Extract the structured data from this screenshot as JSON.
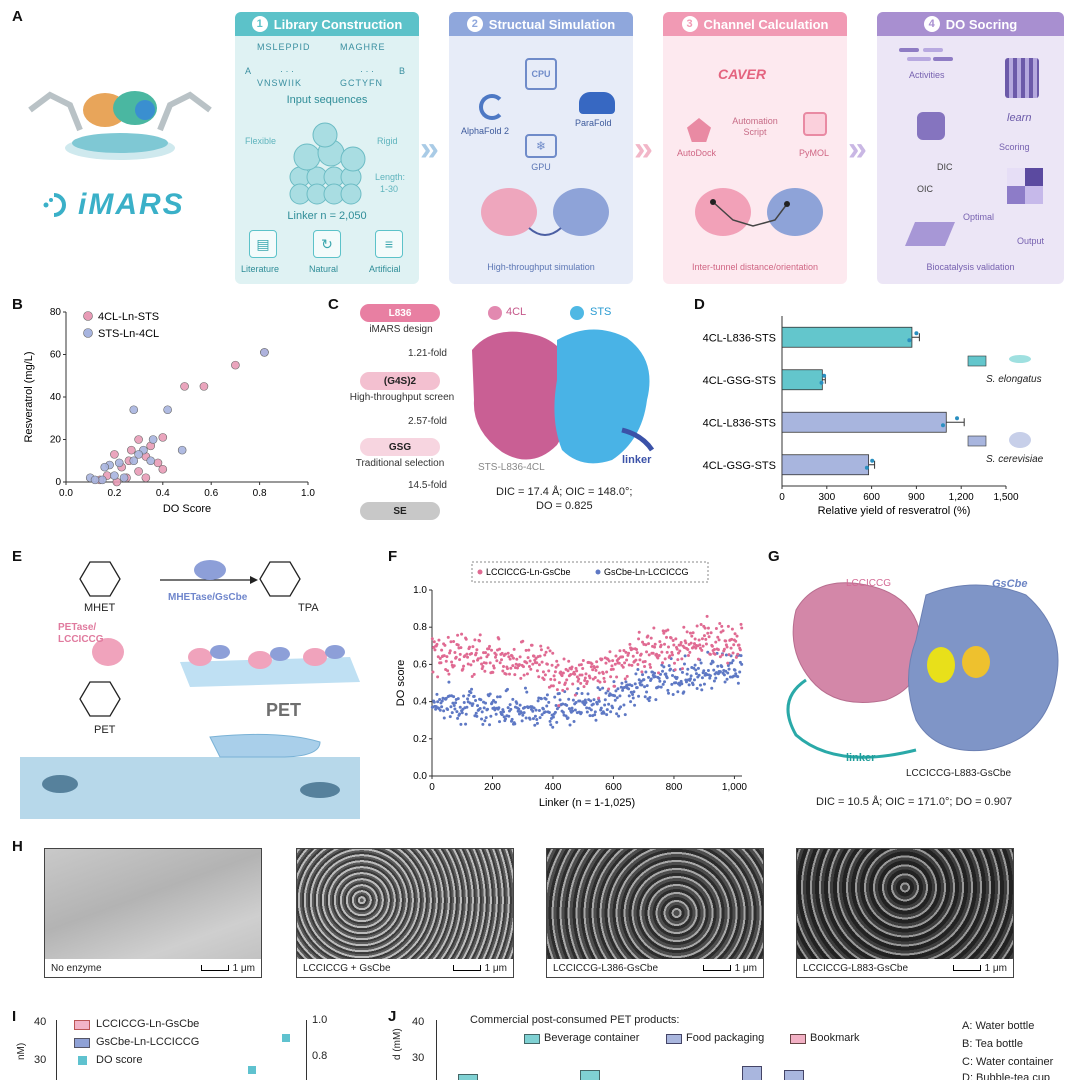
{
  "panel_letters": {
    "a": "A",
    "b": "B",
    "c": "C",
    "d": "D",
    "e": "E",
    "f": "F",
    "g": "G",
    "h": "H",
    "i": "I",
    "j": "J"
  },
  "panelA": {
    "logo_text": "iMARS",
    "steps": [
      {
        "num": "1",
        "title": "Library Construction",
        "color": "#5cc2c9",
        "bg": "#dff2f3"
      },
      {
        "num": "2",
        "title": "Structual Simulation",
        "color": "#8fa7dc",
        "bg": "#e7ecf8"
      },
      {
        "num": "3",
        "title": "Channel Calculation",
        "color": "#f19ab4",
        "bg": "#fde9ef"
      },
      {
        "num": "4",
        "title": "DO Socring",
        "color": "#a88fd0",
        "bg": "#ece6f6"
      }
    ],
    "lib": {
      "seqA1": "MSLEPPID",
      "seqA2": "VNSWIIK",
      "seqB1": "MAGHRE",
      "seqB2": "GCTYFN",
      "labelA": "A",
      "labelB": "B",
      "dots": "· · ·",
      "input_sequences": "Input sequences",
      "flexible": "Flexible",
      "rigid": "Rigid",
      "length": "Length:",
      "length_range": "1-30",
      "linker": "Linker  n = 2,050",
      "sources": [
        "Literature",
        "Natural",
        "Artificial"
      ]
    },
    "sim": {
      "cpu": "CPU",
      "gpu": "GPU",
      "alphafold": "AlphaFold 2",
      "parafold": "ParaFold",
      "caption": "High-throughput simulation"
    },
    "chan": {
      "caver": "CAVER",
      "automation": "Automation",
      "script": "Script",
      "autodock": "AutoDock",
      "pymol": "PyMOL",
      "caption": "Inter-tunnel distance/orientation"
    },
    "do": {
      "activities": "Activities",
      "learn": "learn",
      "scoring": "Scoring",
      "dic": "DIC",
      "oic": "OIC",
      "optimal": "Optimal",
      "output": "Output",
      "caption": "Biocatalysis validation"
    }
  },
  "panelB": {
    "legend": [
      "4CL-Ln-STS",
      "STS-Ln-4CL"
    ],
    "xlabel": "DO Score",
    "ylabel": "Resveratrol (mg/L)"
  },
  "panelC": {
    "steps": [
      "L836",
      "(G4S)2",
      "GSG",
      "SE"
    ],
    "step_labels": [
      "iMARS design",
      "High-throughput screen",
      "Traditional selection"
    ],
    "folds": [
      "1.21-fold",
      "2.57-fold",
      "14.5-fold"
    ],
    "legend": [
      "4CL",
      "STS"
    ],
    "structure_label": "STS-L836-4CL",
    "linker": "linker",
    "metrics1": "DIC = 17.4 Å; OIC = 148.0°;",
    "metrics2": "DO = 0.825"
  },
  "panelD": {
    "xlabel": "Relative yield of resveratrol (%)",
    "organisms": [
      "S. elongatus",
      "S. cerevisiae"
    ]
  },
  "panelE": {
    "mhet": "MHET",
    "tpa": "TPA",
    "enzyme": "MHETase/GsCbe",
    "petase": "PETase/",
    "lcc": "LCCICCG",
    "pet_label": "PET",
    "pet_big": "PET"
  },
  "panelF": {
    "legend": [
      "LCCICCG-Ln-GsCbe",
      "GsCbe-Ln-LCCICCG"
    ],
    "xlabel": "Linker (n = 1-1,025)",
    "ylabel": "DO score"
  },
  "panelG": {
    "lcc": "LCCICCG",
    "gscbe": "GsCbe",
    "linker": "linker",
    "construct": "LCCICCG-L883-GsCbe",
    "metrics": "DIC = 10.5 Å; OIC = 171.0°; DO = 0.907"
  },
  "panelH": {
    "scale": "1 μm",
    "images": [
      "No enzyme",
      "LCCICCG + GsCbe",
      "LCCICCG-L386-GsCbe",
      "LCCICCG-L883-GsCbe"
    ]
  },
  "panelI": {
    "legend": [
      "LCCICCG-Ln-GsCbe",
      "GsCbe-Ln-LCCICCG",
      "DO score"
    ],
    "ylabel_left": "nM)",
    "yticks_left": [
      "40",
      "30"
    ],
    "yticks_right": [
      "1.0",
      "0.8"
    ]
  },
  "panelJ": {
    "title": "Commercial post-consumed PET products:",
    "legend": [
      "Beverage container",
      "Food packaging",
      "Bookmark"
    ],
    "ylabel": "d (mM)",
    "yticks": [
      "40",
      "30"
    ],
    "keys": [
      "A: Water bottle",
      "B: Tea bottle",
      "C: Water container",
      "D: Bubble-tea cup"
    ]
  },
  "chart_data": [
    {
      "id": "B",
      "type": "scatter",
      "xlabel": "DO Score",
      "ylabel": "Resveratrol (mg/L)",
      "xlim": [
        0,
        1.0
      ],
      "ylim": [
        0,
        80
      ],
      "xticks": [
        "0.0",
        "0.2",
        "0.4",
        "0.6",
        "0.8",
        "1.0"
      ],
      "yticks": [
        "0",
        "20",
        "40",
        "60",
        "80"
      ],
      "series": [
        {
          "name": "4CL-Ln-STS",
          "color": "#e89bb6",
          "points": [
            [
              0.82,
              61
            ],
            [
              0.7,
              55
            ],
            [
              0.57,
              45
            ],
            [
              0.49,
              45
            ],
            [
              0.4,
              21
            ],
            [
              0.3,
              20
            ],
            [
              0.35,
              17
            ],
            [
              0.27,
              15
            ],
            [
              0.2,
              13
            ],
            [
              0.33,
              12
            ],
            [
              0.26,
              10
            ],
            [
              0.38,
              9
            ],
            [
              0.23,
              7
            ],
            [
              0.3,
              5
            ],
            [
              0.4,
              6
            ],
            [
              0.17,
              3
            ],
            [
              0.25,
              2
            ],
            [
              0.14,
              1
            ],
            [
              0.33,
              2
            ],
            [
              0.21,
              0
            ]
          ]
        },
        {
          "name": "STS-Ln-4CL",
          "color": "#a7b4df",
          "points": [
            [
              0.82,
              61
            ],
            [
              0.42,
              34
            ],
            [
              0.28,
              34
            ],
            [
              0.36,
              20
            ],
            [
              0.48,
              15
            ],
            [
              0.32,
              15
            ],
            [
              0.3,
              13
            ],
            [
              0.28,
              10
            ],
            [
              0.22,
              9
            ],
            [
              0.18,
              8
            ],
            [
              0.35,
              10
            ],
            [
              0.16,
              7
            ],
            [
              0.1,
              2
            ],
            [
              0.15,
              1
            ],
            [
              0.2,
              3
            ],
            [
              0.24,
              2
            ],
            [
              0.12,
              1
            ]
          ]
        }
      ]
    },
    {
      "id": "D",
      "type": "bar",
      "orientation": "horizontal",
      "categories": [
        "4CL-L836-STS",
        "4CL-GSG-STS",
        "4CL-L836-STS",
        "4CL-GSG-STS"
      ],
      "values": [
        870,
        270,
        1100,
        580
      ],
      "errors": [
        50,
        20,
        120,
        40
      ],
      "colors": [
        "#63c6cc",
        "#63c6cc",
        "#a8b5de",
        "#a8b5de"
      ],
      "xlim": [
        0,
        1500
      ],
      "xticks": [
        "0",
        "300",
        "600",
        "900",
        "1,200",
        "1,500"
      ],
      "xlabel": "Relative yield of resveratrol (%)"
    },
    {
      "id": "F",
      "type": "scatter",
      "xlabel": "Linker (n = 1-1,025)",
      "ylabel": "DO score",
      "xlim": [
        0,
        1025
      ],
      "ylim": [
        0,
        1.0
      ],
      "xticks": [
        "0",
        "200",
        "400",
        "600",
        "800",
        "1,000"
      ],
      "yticks": [
        "0.0",
        "0.2",
        "0.4",
        "0.6",
        "0.8",
        "1.0"
      ],
      "series": [
        {
          "name": "LCCICCG-Ln-GsCbe",
          "color": "#e06a92",
          "mean_profile": [
            [
              0,
              0.65
            ],
            [
              200,
              0.65
            ],
            [
              380,
              0.6
            ],
            [
              420,
              0.52
            ],
            [
              600,
              0.58
            ],
            [
              700,
              0.68
            ],
            [
              1025,
              0.73
            ]
          ],
          "spread": 0.11
        },
        {
          "name": "GsCbe-Ln-LCCICCG",
          "color": "#5e78c4",
          "mean_profile": [
            [
              0,
              0.4
            ],
            [
              200,
              0.37
            ],
            [
              400,
              0.36
            ],
            [
              600,
              0.4
            ],
            [
              700,
              0.5
            ],
            [
              1025,
              0.6
            ]
          ],
          "spread": 0.09
        }
      ]
    }
  ]
}
